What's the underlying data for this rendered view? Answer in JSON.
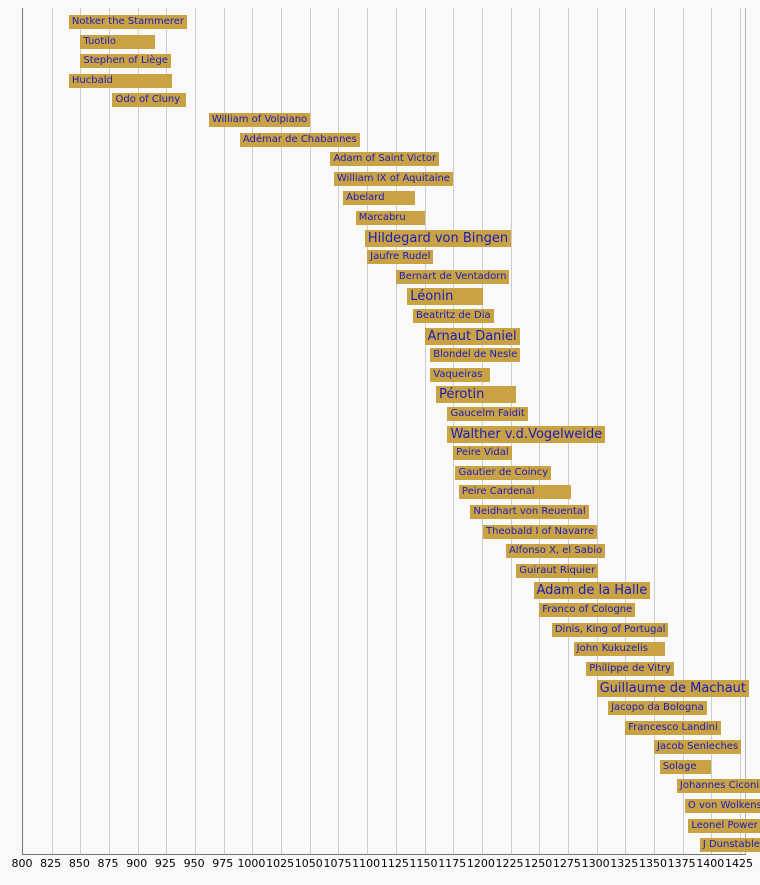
{
  "page": {
    "background": "#f9f9f9"
  },
  "chart_data": {
    "type": "bar",
    "subtype": "timeline",
    "title": "",
    "xlabel": "",
    "ylabel": "",
    "grid": true,
    "legend": "none",
    "colors": {
      "background": "#f9f9f9",
      "bar_fill": "#c9a243",
      "label_text": "#1c1cbe",
      "gridline": "#cccccc",
      "frame": "#777777",
      "axis_text": "#000000"
    },
    "x_axis": {
      "min": 800,
      "max": 1425,
      "tick_step": 25,
      "ticks": [
        800,
        825,
        850,
        875,
        900,
        925,
        950,
        975,
        1000,
        1025,
        1050,
        1075,
        1100,
        1125,
        1150,
        1175,
        1200,
        1225,
        1250,
        1275,
        1300,
        1325,
        1350,
        1375,
        1400,
        1425
      ]
    },
    "bars": [
      {
        "label": "Notker the Stammerer",
        "start": 840,
        "end": 912,
        "emphasis": false,
        "clipped": false
      },
      {
        "label": "Tuotilo",
        "start": 850,
        "end": 915,
        "emphasis": false,
        "clipped": false
      },
      {
        "label": "Stephen of Liège",
        "start": 850,
        "end": 920,
        "emphasis": false,
        "clipped": false
      },
      {
        "label": "Hucbald",
        "start": 840,
        "end": 930,
        "emphasis": false,
        "clipped": false
      },
      {
        "label": "Odo of Cluny",
        "start": 878,
        "end": 942,
        "emphasis": false,
        "clipped": false
      },
      {
        "label": "William of Volpiano",
        "start": 962,
        "end": 1031,
        "emphasis": false,
        "clipped": false
      },
      {
        "label": "Adémar de Chabannes",
        "start": 989,
        "end": 1034,
        "emphasis": false,
        "clipped": false
      },
      {
        "label": "Adam of Saint Victor",
        "start": 1068,
        "end": 1146,
        "emphasis": false,
        "clipped": false
      },
      {
        "label": "William IX of Aquitaine",
        "start": 1071,
        "end": 1126,
        "emphasis": false,
        "clipped": false
      },
      {
        "label": "Abelard",
        "start": 1079,
        "end": 1142,
        "emphasis": false,
        "clipped": false
      },
      {
        "label": "Marcabru",
        "start": 1090,
        "end": 1150,
        "emphasis": false,
        "clipped": false
      },
      {
        "label": "Hildegard von Bingen",
        "start": 1098,
        "end": 1179,
        "emphasis": true,
        "clipped": false
      },
      {
        "label": "Jaufre Rudel",
        "start": 1100,
        "end": 1147,
        "emphasis": false,
        "clipped": false
      },
      {
        "label": "Bernart de Ventadorn",
        "start": 1125,
        "end": 1200,
        "emphasis": false,
        "clipped": false
      },
      {
        "label": "Léonin",
        "start": 1135,
        "end": 1201,
        "emphasis": true,
        "clipped": false
      },
      {
        "label": "Beatritz de Dia",
        "start": 1140,
        "end": 1175,
        "emphasis": false,
        "clipped": false
      },
      {
        "label": "Arnaut Daniel",
        "start": 1150,
        "end": 1200,
        "emphasis": true,
        "clipped": false
      },
      {
        "label": "Blondel de Nesle",
        "start": 1155,
        "end": 1202,
        "emphasis": false,
        "clipped": false
      },
      {
        "label": "Vaqueiras",
        "start": 1155,
        "end": 1207,
        "emphasis": false,
        "clipped": false
      },
      {
        "label": "Pérotin",
        "start": 1160,
        "end": 1230,
        "emphasis": true,
        "clipped": false
      },
      {
        "label": "Gaucelm Faidit",
        "start": 1170,
        "end": 1202,
        "emphasis": false,
        "clipped": false
      },
      {
        "label": "Walther v.d.Vogelweide",
        "start": 1170,
        "end": 1230,
        "emphasis": true,
        "clipped": false
      },
      {
        "label": "Peire Vidal",
        "start": 1175,
        "end": 1205,
        "emphasis": false,
        "clipped": false
      },
      {
        "label": "Gautier de Coincy",
        "start": 1177,
        "end": 1236,
        "emphasis": false,
        "clipped": false
      },
      {
        "label": "Peire Cardenal",
        "start": 1180,
        "end": 1278,
        "emphasis": false,
        "clipped": false
      },
      {
        "label": "Neidhart von Reuental",
        "start": 1190,
        "end": 1240,
        "emphasis": false,
        "clipped": false
      },
      {
        "label": "Theobald I of Navarre",
        "start": 1201,
        "end": 1253,
        "emphasis": false,
        "clipped": false
      },
      {
        "label": "Alfonso X, el Sabio",
        "start": 1221,
        "end": 1284,
        "emphasis": false,
        "clipped": false
      },
      {
        "label": "Guiraut Riquier",
        "start": 1230,
        "end": 1292,
        "emphasis": false,
        "clipped": false
      },
      {
        "label": "Adam de la Halle",
        "start": 1245,
        "end": 1288,
        "emphasis": true,
        "clipped": false
      },
      {
        "label": "Franco of Cologne",
        "start": 1250,
        "end": 1280,
        "emphasis": false,
        "clipped": false
      },
      {
        "label": "Dinis, King of Portugal",
        "start": 1261,
        "end": 1325,
        "emphasis": false,
        "clipped": false
      },
      {
        "label": "John Kukuzelis",
        "start": 1280,
        "end": 1360,
        "emphasis": false,
        "clipped": false
      },
      {
        "label": "Philippe de Vitry",
        "start": 1291,
        "end": 1361,
        "emphasis": false,
        "clipped": false
      },
      {
        "label": "Guillaume de Machaut",
        "start": 1300,
        "end": 1377,
        "emphasis": true,
        "clipped": false
      },
      {
        "label": "Jacopo da Bologna",
        "start": 1310,
        "end": 1386,
        "emphasis": false,
        "clipped": false
      },
      {
        "label": "Francesco Landini",
        "start": 1325,
        "end": 1397,
        "emphasis": false,
        "clipped": false
      },
      {
        "label": "Jacob Senleches",
        "start": 1350,
        "end": 1395,
        "emphasis": false,
        "clipped": false
      },
      {
        "label": "Solage",
        "start": 1355,
        "end": 1400,
        "emphasis": false,
        "clipped": false
      },
      {
        "label": "Johannes Ciconia",
        "start": 1370,
        "end": 1412,
        "emphasis": false,
        "clipped": false
      },
      {
        "label": "O von Wolkenste",
        "start": 1377,
        "end": 1425,
        "emphasis": false,
        "clipped": true
      },
      {
        "label": "Leonel Power",
        "start": 1380,
        "end": 1425,
        "emphasis": false,
        "clipped": true
      },
      {
        "label": "J Dunstable",
        "start": 1390,
        "end": 1425,
        "emphasis": false,
        "clipped": true
      }
    ]
  }
}
